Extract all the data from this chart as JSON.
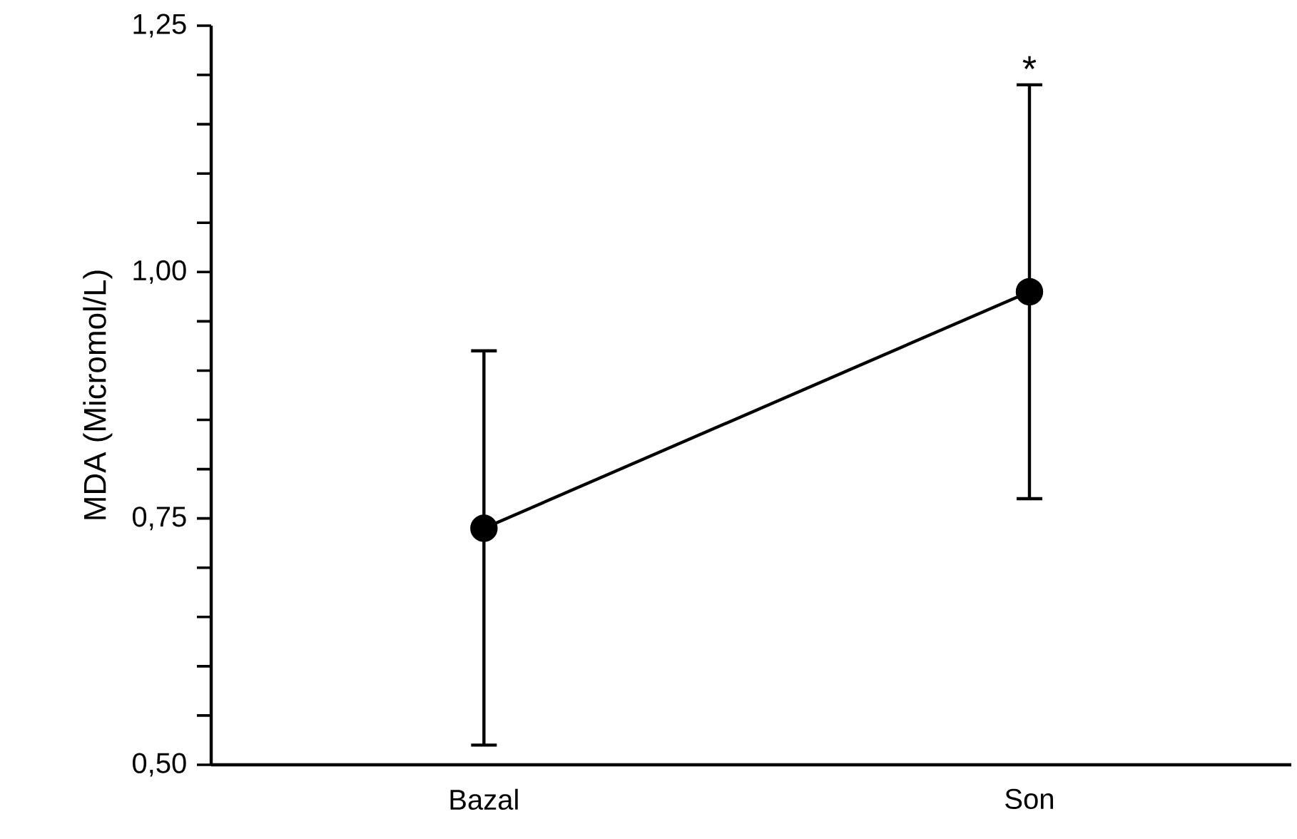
{
  "chart_data": {
    "type": "line",
    "ylabel": "MDA (Micromol/L)",
    "categories": [
      "Bazal",
      "Son"
    ],
    "series": [
      {
        "color": "#000000",
        "values": [
          0.74,
          0.98
        ],
        "errors": [
          [
            0.52,
            0.92
          ],
          [
            0.77,
            1.19
          ]
        ]
      }
    ],
    "ylim": [
      0.5,
      1.25
    ],
    "yticks": [
      {
        "value": 0.5,
        "label": "0,50"
      },
      {
        "value": 0.55,
        "label": null
      },
      {
        "value": 0.6,
        "label": null
      },
      {
        "value": 0.65,
        "label": null
      },
      {
        "value": 0.7,
        "label": null
      },
      {
        "value": 0.75,
        "label": "0,75"
      },
      {
        "value": 0.8,
        "label": null
      },
      {
        "value": 0.85,
        "label": null
      },
      {
        "value": 0.9,
        "label": null
      },
      {
        "value": 0.95,
        "label": null
      },
      {
        "value": 1.0,
        "label": "1,00"
      },
      {
        "value": 1.05,
        "label": null
      },
      {
        "value": 1.1,
        "label": null
      },
      {
        "value": 1.15,
        "label": null
      },
      {
        "value": 1.2,
        "label": null
      },
      {
        "value": 1.25,
        "label": "1,25"
      }
    ],
    "annotations": [
      {
        "text": "*",
        "x": "Son",
        "y": 1.19
      }
    ],
    "marker": "circle",
    "line_style": "solid",
    "grid": false
  }
}
